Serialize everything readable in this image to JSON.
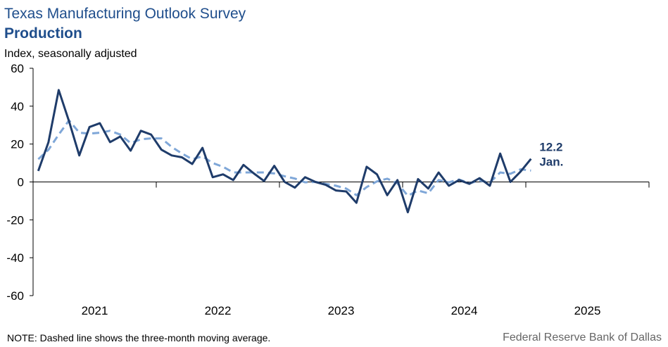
{
  "chart_data": {
    "type": "line",
    "title": "Texas Manufacturing Outlook Survey",
    "subtitle": "Production",
    "ylabel": "Index, seasonally adjusted",
    "note": "NOTE: Dashed line shows the three-month  moving average.",
    "source": "Federal Reserve Bank of Dallas",
    "annotation": "Jan.",
    "x": [
      2021.042,
      2021.125,
      2021.208,
      2021.292,
      2021.375,
      2021.458,
      2021.542,
      2021.625,
      2021.708,
      2021.792,
      2021.875,
      2021.958,
      2022.042,
      2022.125,
      2022.208,
      2022.292,
      2022.375,
      2022.458,
      2022.542,
      2022.625,
      2022.708,
      2022.792,
      2022.875,
      2022.958,
      2023.042,
      2023.125,
      2023.208,
      2023.292,
      2023.375,
      2023.458,
      2023.542,
      2023.625,
      2023.708,
      2023.792,
      2023.875,
      2023.958,
      2024.042,
      2024.125,
      2024.208,
      2024.292,
      2024.375,
      2024.458,
      2024.542,
      2024.625,
      2024.708,
      2024.792,
      2024.875,
      2024.958,
      2025.042
    ],
    "series": [
      {
        "color": "#7fa7d8",
        "dashed": true,
        "values": [
          12,
          17,
          25,
          32.5,
          26,
          25.5,
          26,
          27,
          25,
          20.5,
          22.5,
          23,
          23,
          18.5,
          15,
          12,
          13.5,
          10,
          8,
          5,
          5,
          5,
          5,
          4.5,
          3,
          1.8,
          -0.2,
          0,
          -1,
          -2,
          -3.5,
          -7,
          -2.7,
          0.3,
          1.7,
          -0.7,
          -7.3,
          -4.5,
          -6,
          1,
          -0.2,
          1.3,
          -0.7,
          0.7,
          -0.3,
          5,
          4.3,
          6.7,
          6
        ]
      },
      {
        "color": "#1f3c6a",
        "dashed": false,
        "values": [
          5.8,
          21,
          48.5,
          32,
          14,
          29,
          31,
          21,
          24,
          16.5,
          27,
          25,
          17,
          14,
          13,
          9.5,
          18,
          2.5,
          4,
          1,
          9,
          4.5,
          0.5,
          8.5,
          0,
          -3,
          2.5,
          0,
          -1.5,
          -4.5,
          -5,
          -11,
          8,
          4,
          -7,
          1,
          -16,
          1.5,
          -3.5,
          5,
          -2,
          1,
          -1,
          2,
          -2,
          15,
          0,
          5.5,
          12.2
        ]
      }
    ],
    "xlim": [
      2021,
      2026
    ],
    "xticks": [
      2021,
      2022,
      2023,
      2024,
      2025,
      2026
    ],
    "xtick_labels": [
      {
        "value": 2021.5,
        "label": "2021"
      },
      {
        "value": 2022.5,
        "label": "2022"
      },
      {
        "value": 2023.5,
        "label": "2023"
      },
      {
        "value": 2024.5,
        "label": "2024"
      },
      {
        "value": 2025.5,
        "label": "2025"
      }
    ],
    "ylim": [
      -60,
      60
    ],
    "yticks": [
      -60,
      -40,
      -20,
      0,
      20,
      40,
      60
    ]
  }
}
